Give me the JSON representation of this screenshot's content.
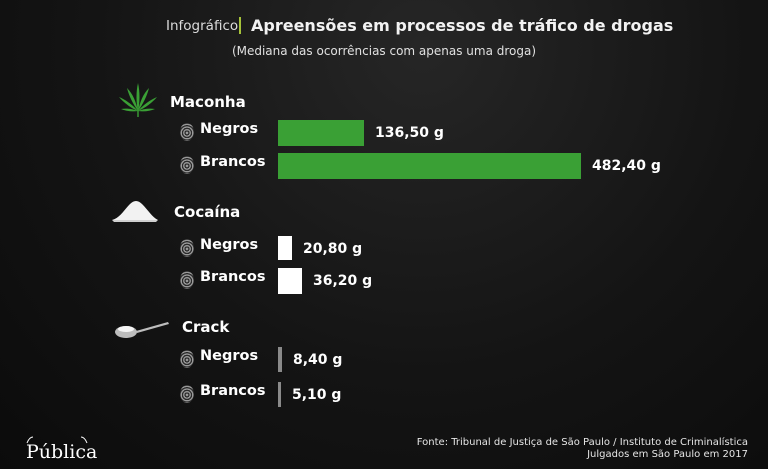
{
  "header": {
    "kicker": "Infográfico",
    "title": "Apreensões em processos de tráfico de drogas",
    "subtitle": "(Mediana das ocorrências com apenas uma droga)"
  },
  "chart_data": {
    "type": "bar",
    "title": "Apreensões em processos de tráfico de drogas",
    "subtitle": "(Mediana das ocorrências com apenas uma droga)",
    "unit": "g",
    "groups": [
      {
        "name": "Maconha",
        "icon": "cannabis-leaf-icon",
        "color": "#3aa035",
        "items": [
          {
            "label": "Negros",
            "value": 136.5,
            "display": "136,50 g"
          },
          {
            "label": "Brancos",
            "value": 482.4,
            "display": "482,40 g"
          }
        ]
      },
      {
        "name": "Cocaína",
        "icon": "powder-pile-icon",
        "color": "#ffffff",
        "items": [
          {
            "label": "Negros",
            "value": 20.8,
            "display": "20,80 g"
          },
          {
            "label": "Brancos",
            "value": 36.2,
            "display": "36,20 g"
          }
        ]
      },
      {
        "name": "Crack",
        "icon": "spoon-icon",
        "color": "#8a8a8a",
        "items": [
          {
            "label": "Negros",
            "value": 8.4,
            "display": "8,40 g"
          },
          {
            "label": "Brancos",
            "value": 5.1,
            "display": "5,10 g"
          }
        ]
      }
    ]
  },
  "footer": {
    "source_line1": "Fonte: Tribunal de Justiça de São Paulo / Instituto de Criminalística",
    "source_line2": "Julgados em São Paulo em 2017",
    "logo": "Pública"
  }
}
